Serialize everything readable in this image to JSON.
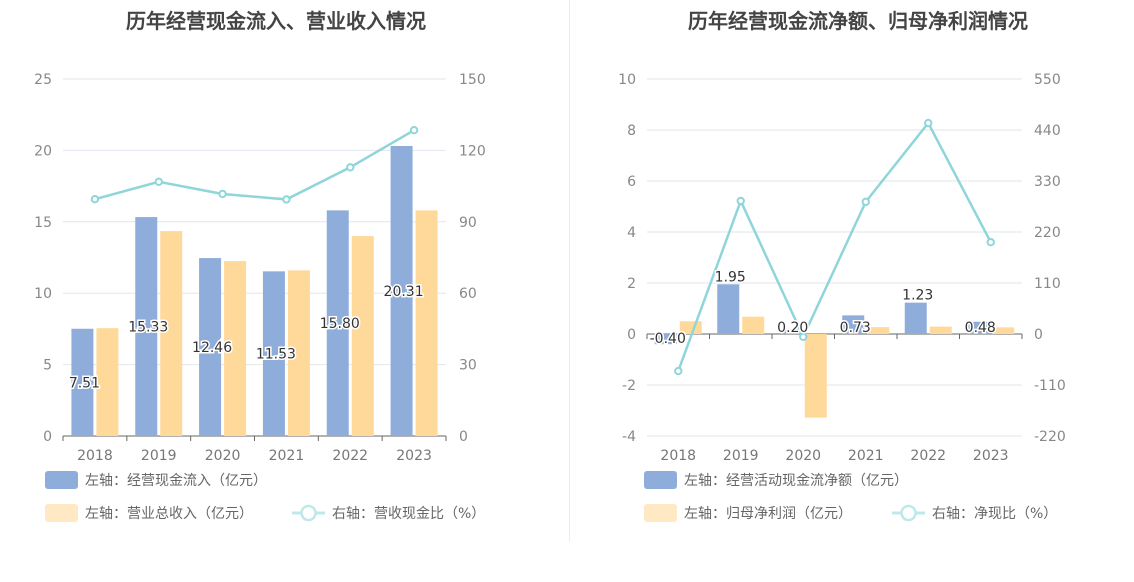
{
  "chart_data": [
    {
      "type": "bar",
      "title": "历年经营现金流入、营业收入情况",
      "categories": [
        "2018",
        "2019",
        "2020",
        "2021",
        "2022",
        "2023"
      ],
      "y_left": {
        "min": 0,
        "max": 25,
        "ticks": [
          "0",
          "5",
          "10",
          "15",
          "20",
          "25"
        ]
      },
      "y_right": {
        "min": 0,
        "max": 150,
        "ticks": [
          "0",
          "30",
          "60",
          "90",
          "120",
          "150"
        ]
      },
      "series": [
        {
          "name": "左轴：经营现金流入（亿元）",
          "kind": "bar",
          "axis": "left",
          "color": "#8eaddb",
          "values": [
            7.51,
            15.33,
            12.46,
            11.53,
            15.8,
            20.31
          ],
          "labels": [
            "7.51",
            "15.33",
            "12.46",
            "11.53",
            "15.80",
            "20.31"
          ]
        },
        {
          "name": "左轴：营业总收入（亿元）",
          "kind": "bar",
          "axis": "left",
          "color": "#ffd99a",
          "values": [
            7.55,
            14.35,
            12.25,
            11.6,
            14.0,
            15.8
          ]
        },
        {
          "name": "右轴：营收现金比（%）",
          "kind": "line",
          "axis": "right",
          "color": "#8fd5d9",
          "values": [
            99.5,
            106.8,
            101.7,
            99.4,
            112.9,
            128.5
          ]
        }
      ],
      "grid": true,
      "legend_position": "bottom-left"
    },
    {
      "type": "bar",
      "title": "历年经营现金流净额、归母净利润情况",
      "categories": [
        "2018",
        "2019",
        "2020",
        "2021",
        "2022",
        "2023"
      ],
      "y_left": {
        "min": -4,
        "max": 10,
        "ticks": [
          "-4",
          "-2",
          "0",
          "2",
          "4",
          "6",
          "8",
          "10"
        ]
      },
      "y_right": {
        "min": -220,
        "max": 550,
        "ticks": [
          "-220",
          "-110",
          "0",
          "110",
          "220",
          "330",
          "440",
          "550"
        ]
      },
      "series": [
        {
          "name": "左轴：经营活动现金流净额（亿元）",
          "kind": "bar",
          "axis": "left",
          "color": "#8eaddb",
          "values": [
            -0.4,
            1.95,
            0.2,
            0.73,
            1.23,
            0.48
          ],
          "labels": [
            "-0.40",
            "1.95",
            "0.20",
            "0.73",
            "1.23",
            "0.48"
          ]
        },
        {
          "name": "左轴：归母净利润（亿元）",
          "kind": "bar",
          "axis": "left",
          "color": "#ffd99a",
          "values": [
            0.5,
            0.68,
            -3.28,
            0.27,
            0.29,
            0.26
          ]
        },
        {
          "name": "右轴：净现比（%）",
          "kind": "line",
          "axis": "right",
          "color": "#8fd5d9",
          "values": [
            -80,
            287,
            -6,
            285,
            455,
            198
          ]
        }
      ],
      "grid": true,
      "legend_position": "bottom-left"
    }
  ]
}
